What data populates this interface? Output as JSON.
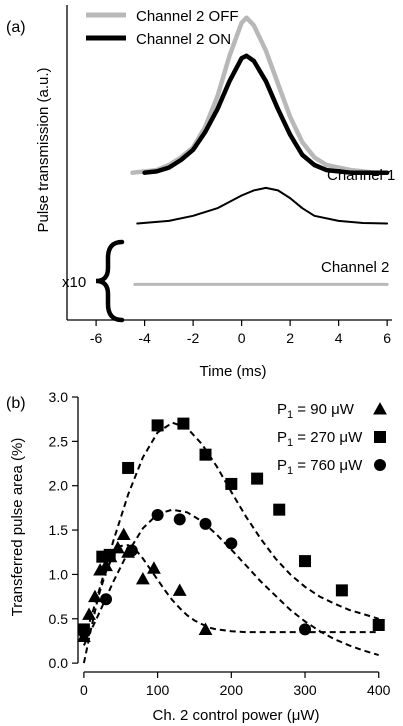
{
  "chart_data": [
    {
      "panel": "(a)",
      "type": "line",
      "xlabel": "Time (ms)",
      "ylabel": "Pulse transmission (a.u.)",
      "xlim": [
        -7.2,
        6.2
      ],
      "ylim": [
        -0.12,
        1.12
      ],
      "xticks": [
        -6,
        -4,
        -2,
        0,
        2,
        4,
        6
      ],
      "tick_labels": [
        "-6",
        "-4",
        "-2",
        "0",
        "2",
        "4",
        "6"
      ],
      "legend": {
        "position": "top-left",
        "entries": [
          {
            "label": "Channel 2 OFF",
            "color": "#b8b8b8"
          },
          {
            "label": "Channel 2 ON",
            "color": "#000000"
          }
        ]
      },
      "annotations": {
        "channel1": "Channel 1",
        "channel2": "Channel 2",
        "scale": "x10"
      },
      "series": [
        {
          "name": "Channel 2 OFF",
          "color": "#b8b8b8",
          "channel": 1,
          "x": [
            -4.5,
            -3.5,
            -3,
            -2.5,
            -2,
            -1.5,
            -1,
            -0.5,
            0,
            0.2,
            0.5,
            1,
            1.5,
            2,
            2.5,
            3,
            3.5,
            4,
            4.5,
            5,
            5.5,
            6
          ],
          "y": [
            0.46,
            0.47,
            0.49,
            0.52,
            0.56,
            0.64,
            0.76,
            0.92,
            1.05,
            1.07,
            1.04,
            0.94,
            0.81,
            0.68,
            0.58,
            0.52,
            0.49,
            0.48,
            0.47,
            0.465,
            0.46,
            0.46
          ]
        },
        {
          "name": "Channel 2 ON",
          "color": "#000000",
          "channel": 1,
          "x": [
            -4,
            -3.5,
            -3,
            -2.5,
            -2,
            -1.5,
            -1,
            -0.5,
            0,
            0.2,
            0.5,
            1,
            1.5,
            2,
            2.5,
            3,
            3.5,
            4,
            4.5,
            5,
            5.5,
            6
          ],
          "y": [
            0.46,
            0.465,
            0.48,
            0.51,
            0.55,
            0.62,
            0.71,
            0.82,
            0.91,
            0.92,
            0.9,
            0.82,
            0.71,
            0.61,
            0.53,
            0.49,
            0.47,
            0.465,
            0.46,
            0.46,
            0.46,
            0.46
          ]
        },
        {
          "name": "Channel 2 ON",
          "color": "#000000",
          "channel": 2,
          "x": [
            -4.3,
            -3,
            -2,
            -1,
            0,
            0.5,
            1,
            1.5,
            2,
            2.5,
            3,
            4,
            5,
            6
          ],
          "y": [
            0.26,
            0.27,
            0.29,
            0.32,
            0.37,
            0.39,
            0.4,
            0.39,
            0.36,
            0.32,
            0.29,
            0.27,
            0.262,
            0.26
          ]
        },
        {
          "name": "Channel 2 OFF",
          "color": "#b8b8b8",
          "channel": 2,
          "x": [
            -4.4,
            -2,
            0,
            2,
            4,
            6
          ],
          "y": [
            0.02,
            0.02,
            0.02,
            0.02,
            0.02,
            0.02
          ]
        }
      ]
    },
    {
      "panel": "(b)",
      "type": "scatter",
      "xlabel": "Ch. 2 control power (μW)",
      "ylabel": "Transferred pulse area (%)",
      "xlim": [
        -8,
        418
      ],
      "ylim": [
        -0.1,
        3.0
      ],
      "xticks": [
        0,
        100,
        200,
        300,
        400
      ],
      "yticks": [
        0.0,
        0.5,
        1.0,
        1.5,
        2.0,
        2.5,
        3.0
      ],
      "xtick_labels": [
        "0",
        "100",
        "200",
        "300",
        "400"
      ],
      "ytick_labels": [
        "0.0",
        "0.5",
        "1.0",
        "1.5",
        "2.0",
        "2.5",
        "3.0"
      ],
      "legend": {
        "position": "top-right"
      },
      "series": [
        {
          "name": "P1 = 90 μW",
          "legend_main": "P",
          "legend_sub": "1",
          "legend_rest": " = 90 μW",
          "marker": "triangle",
          "x": [
            0,
            7,
            15,
            22,
            30,
            36,
            46,
            54,
            60,
            80,
            95,
            130,
            165
          ],
          "y": [
            0.3,
            0.55,
            0.75,
            1.05,
            1.1,
            1.2,
            1.3,
            1.45,
            1.25,
            0.95,
            1.07,
            0.82,
            0.38
          ],
          "fit_x": [
            0,
            10,
            20,
            30,
            40,
            50,
            60,
            70,
            80,
            90,
            100,
            110,
            120,
            130,
            140,
            150,
            160,
            170,
            180,
            200,
            220,
            260,
            300,
            340,
            380,
            400
          ],
          "fit_y": [
            0.0,
            0.4,
            0.76,
            1.03,
            1.22,
            1.32,
            1.33,
            1.28,
            1.18,
            1.06,
            0.94,
            0.82,
            0.71,
            0.62,
            0.54,
            0.48,
            0.44,
            0.4,
            0.38,
            0.36,
            0.35,
            0.35,
            0.35,
            0.35,
            0.35,
            0.35
          ]
        },
        {
          "name": "P1 = 270 μW",
          "legend_main": "P",
          "legend_sub": "1",
          "legend_rest": " = 270 μW",
          "marker": "square",
          "x": [
            0,
            25,
            35,
            60,
            100,
            135,
            165,
            200,
            235,
            265,
            300,
            350,
            400
          ],
          "y": [
            0.38,
            1.2,
            1.22,
            2.2,
            2.68,
            2.7,
            2.35,
            2.02,
            2.08,
            1.73,
            1.15,
            0.82,
            0.43
          ],
          "fit_x": [
            0,
            20,
            40,
            60,
            80,
            100,
            120,
            140,
            160,
            180,
            200,
            220,
            240,
            260,
            280,
            300,
            320,
            340,
            360,
            380,
            400
          ],
          "fit_y": [
            0.25,
            0.8,
            1.38,
            1.9,
            2.32,
            2.6,
            2.71,
            2.65,
            2.47,
            2.22,
            1.93,
            1.65,
            1.4,
            1.18,
            1.0,
            0.86,
            0.75,
            0.67,
            0.6,
            0.55,
            0.5
          ]
        },
        {
          "name": "P1 = 760 μW",
          "legend_main": "P",
          "legend_sub": "1",
          "legend_rest": " = 760 μW",
          "marker": "circle",
          "x": [
            0,
            30,
            65,
            100,
            130,
            165,
            200,
            300
          ],
          "y": [
            0.35,
            0.72,
            1.27,
            1.67,
            1.62,
            1.57,
            1.35,
            0.38
          ],
          "fit_x": [
            0,
            20,
            40,
            60,
            80,
            100,
            120,
            140,
            160,
            180,
            200,
            220,
            240,
            260,
            280,
            300,
            320,
            340,
            360,
            380,
            400
          ],
          "fit_y": [
            0.2,
            0.55,
            0.92,
            1.25,
            1.52,
            1.68,
            1.73,
            1.7,
            1.6,
            1.45,
            1.28,
            1.1,
            0.92,
            0.76,
            0.6,
            0.47,
            0.36,
            0.27,
            0.2,
            0.14,
            0.09
          ]
        }
      ]
    }
  ]
}
